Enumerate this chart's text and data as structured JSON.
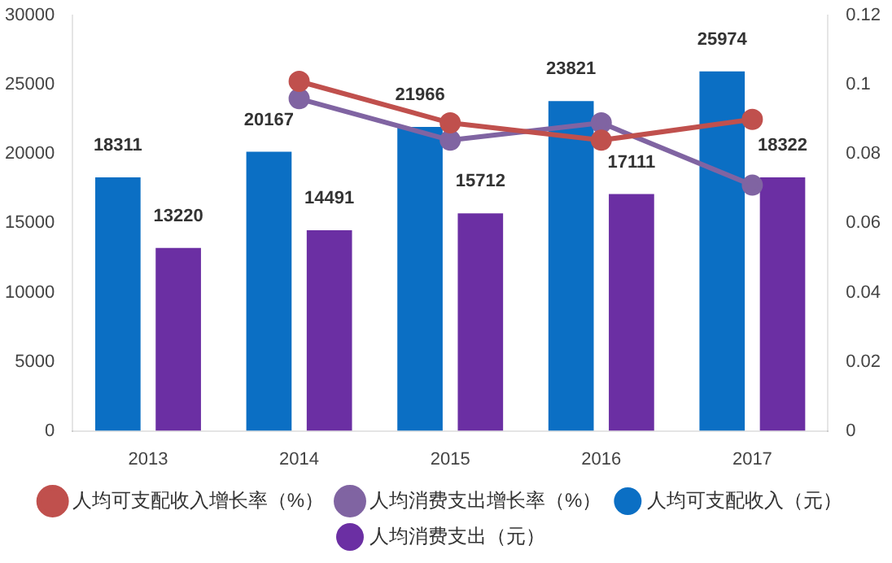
{
  "chart_data": {
    "type": "bar",
    "categories": [
      "2013",
      "2014",
      "2015",
      "2016",
      "2017"
    ],
    "series": [
      {
        "name": "人均可支配收入（元）",
        "color": "#0b6fc4",
        "values": [
          18311,
          20167,
          21966,
          23821,
          25974
        ],
        "value_labels": [
          "18311",
          "20167",
          "21966",
          "23821",
          "25974"
        ]
      },
      {
        "name": "人均消费支出（元）",
        "color": "#6b2fa3",
        "values": [
          13220,
          14491,
          15712,
          17111,
          18322
        ],
        "value_labels": [
          "13220",
          "14491",
          "15712",
          "17111",
          "18322"
        ]
      },
      {
        "name": "人均可支配收入增长率（%）",
        "type": "line",
        "axis": "y2",
        "color": "#c0504d",
        "values": [
          null,
          0.101,
          0.089,
          0.084,
          0.09
        ]
      },
      {
        "name": "人均消费支出增长率（%）",
        "type": "line",
        "axis": "y2",
        "color": "#8064a2",
        "values": [
          null,
          0.096,
          0.084,
          0.089,
          0.071
        ]
      }
    ],
    "ylim": [
      0,
      30000
    ],
    "yticks": [
      0,
      5000,
      10000,
      15000,
      20000,
      25000,
      30000
    ],
    "y2lim": [
      0,
      0.12
    ],
    "y2ticks": [
      0,
      0.02,
      0.04,
      0.06,
      0.08,
      0.1,
      0.12
    ],
    "grid": false,
    "legend": "bottom",
    "marker": "circle"
  }
}
